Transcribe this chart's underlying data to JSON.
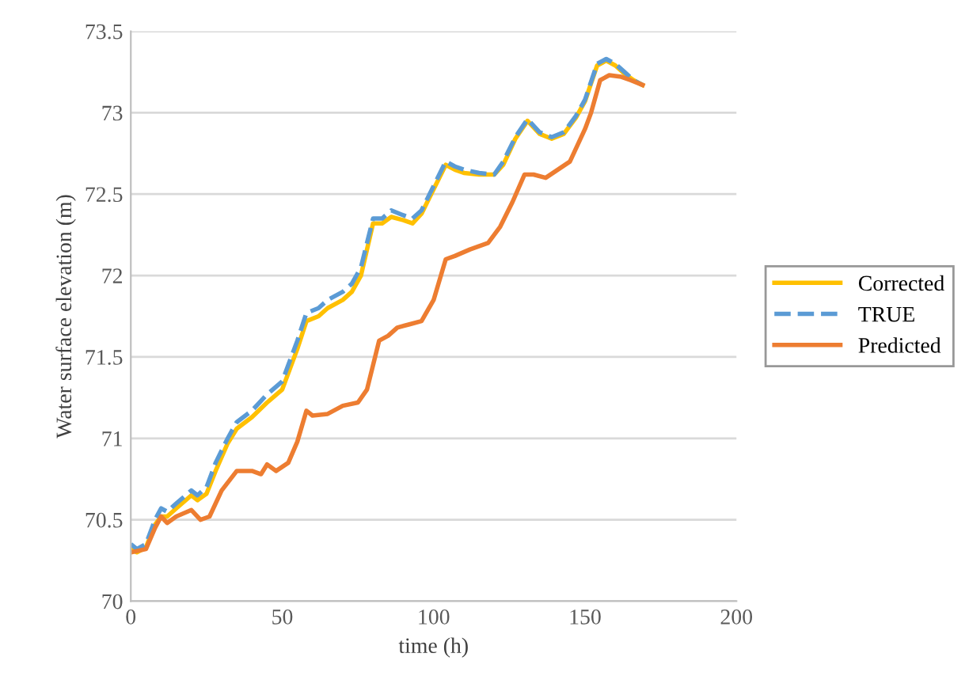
{
  "chart_data": {
    "type": "line",
    "xlabel": "time (h)",
    "ylabel": "Water surface elevation (m)",
    "xlim": [
      0,
      200
    ],
    "xticks": [
      0,
      50,
      100,
      150,
      200
    ],
    "ylim": [
      70,
      73.5
    ],
    "yticks": [
      70,
      70.5,
      71,
      71.5,
      72,
      72.5,
      73,
      73.5
    ],
    "grid": "y",
    "legend": "right",
    "marker": "none",
    "series": [
      {
        "name": "Corrected",
        "color": "#ffc000",
        "line_style": "solid",
        "x": [
          0,
          2,
          5,
          8,
          10,
          12,
          15,
          20,
          22,
          25,
          28,
          32,
          35,
          40,
          45,
          50,
          55,
          58,
          62,
          65,
          70,
          73,
          76,
          80,
          83,
          86,
          90,
          93,
          96,
          100,
          104,
          107,
          110,
          115,
          120,
          123,
          127,
          131,
          135,
          139,
          143,
          147,
          150,
          154,
          157,
          160,
          163,
          166,
          169
        ],
        "values": [
          70.32,
          70.3,
          70.33,
          70.47,
          70.52,
          70.52,
          70.57,
          70.65,
          70.62,
          70.66,
          70.8,
          70.97,
          71.06,
          71.13,
          71.22,
          71.3,
          71.55,
          71.72,
          71.75,
          71.8,
          71.85,
          71.9,
          72.0,
          72.32,
          72.32,
          72.36,
          72.34,
          72.32,
          72.38,
          72.53,
          72.68,
          72.65,
          72.63,
          72.62,
          72.62,
          72.68,
          72.84,
          72.95,
          72.87,
          72.84,
          72.87,
          72.97,
          73.07,
          73.29,
          73.32,
          73.29,
          73.24,
          73.2,
          73.17
        ]
      },
      {
        "name": "TRUE",
        "color": "#5b9bd5",
        "line_style": "dashed",
        "x": [
          0,
          2,
          5,
          8,
          10,
          12,
          15,
          20,
          22,
          25,
          28,
          32,
          35,
          40,
          45,
          50,
          55,
          58,
          62,
          65,
          70,
          73,
          76,
          80,
          83,
          86,
          90,
          93,
          96,
          100,
          104,
          107,
          110,
          115,
          120,
          123,
          127,
          131,
          135,
          139,
          143,
          147,
          150,
          154,
          157,
          160,
          163,
          166,
          169
        ],
        "values": [
          70.35,
          70.32,
          70.35,
          70.5,
          70.57,
          70.55,
          70.6,
          70.68,
          70.65,
          70.7,
          70.85,
          71.0,
          71.1,
          71.17,
          71.27,
          71.35,
          71.6,
          71.77,
          71.8,
          71.85,
          71.9,
          71.95,
          72.05,
          72.35,
          72.35,
          72.4,
          72.37,
          72.35,
          72.4,
          72.55,
          72.7,
          72.67,
          72.65,
          72.63,
          72.62,
          72.7,
          72.85,
          72.96,
          72.88,
          72.85,
          72.88,
          72.98,
          73.08,
          73.3,
          73.33,
          73.3,
          73.25,
          73.2,
          73.17
        ]
      },
      {
        "name": "Predicted",
        "color": "#ed7d31",
        "line_style": "solid",
        "x": [
          0,
          5,
          8,
          10,
          12,
          15,
          20,
          23,
          26,
          30,
          35,
          40,
          43,
          45,
          48,
          52,
          55,
          58,
          60,
          65,
          70,
          75,
          78,
          82,
          85,
          88,
          92,
          96,
          100,
          104,
          107,
          112,
          118,
          122,
          126,
          130,
          133,
          137,
          141,
          145,
          150,
          152,
          155,
          158,
          162,
          165,
          169
        ],
        "values": [
          70.3,
          70.32,
          70.45,
          70.52,
          70.48,
          70.52,
          70.56,
          70.5,
          70.52,
          70.68,
          70.8,
          70.8,
          70.78,
          70.84,
          70.8,
          70.85,
          70.98,
          71.17,
          71.14,
          71.15,
          71.2,
          71.22,
          71.3,
          71.6,
          71.63,
          71.68,
          71.7,
          71.72,
          71.85,
          72.1,
          72.12,
          72.16,
          72.2,
          72.3,
          72.45,
          72.62,
          72.62,
          72.6,
          72.65,
          72.7,
          72.9,
          73.0,
          73.2,
          73.23,
          73.22,
          73.2,
          73.17
        ]
      }
    ]
  }
}
